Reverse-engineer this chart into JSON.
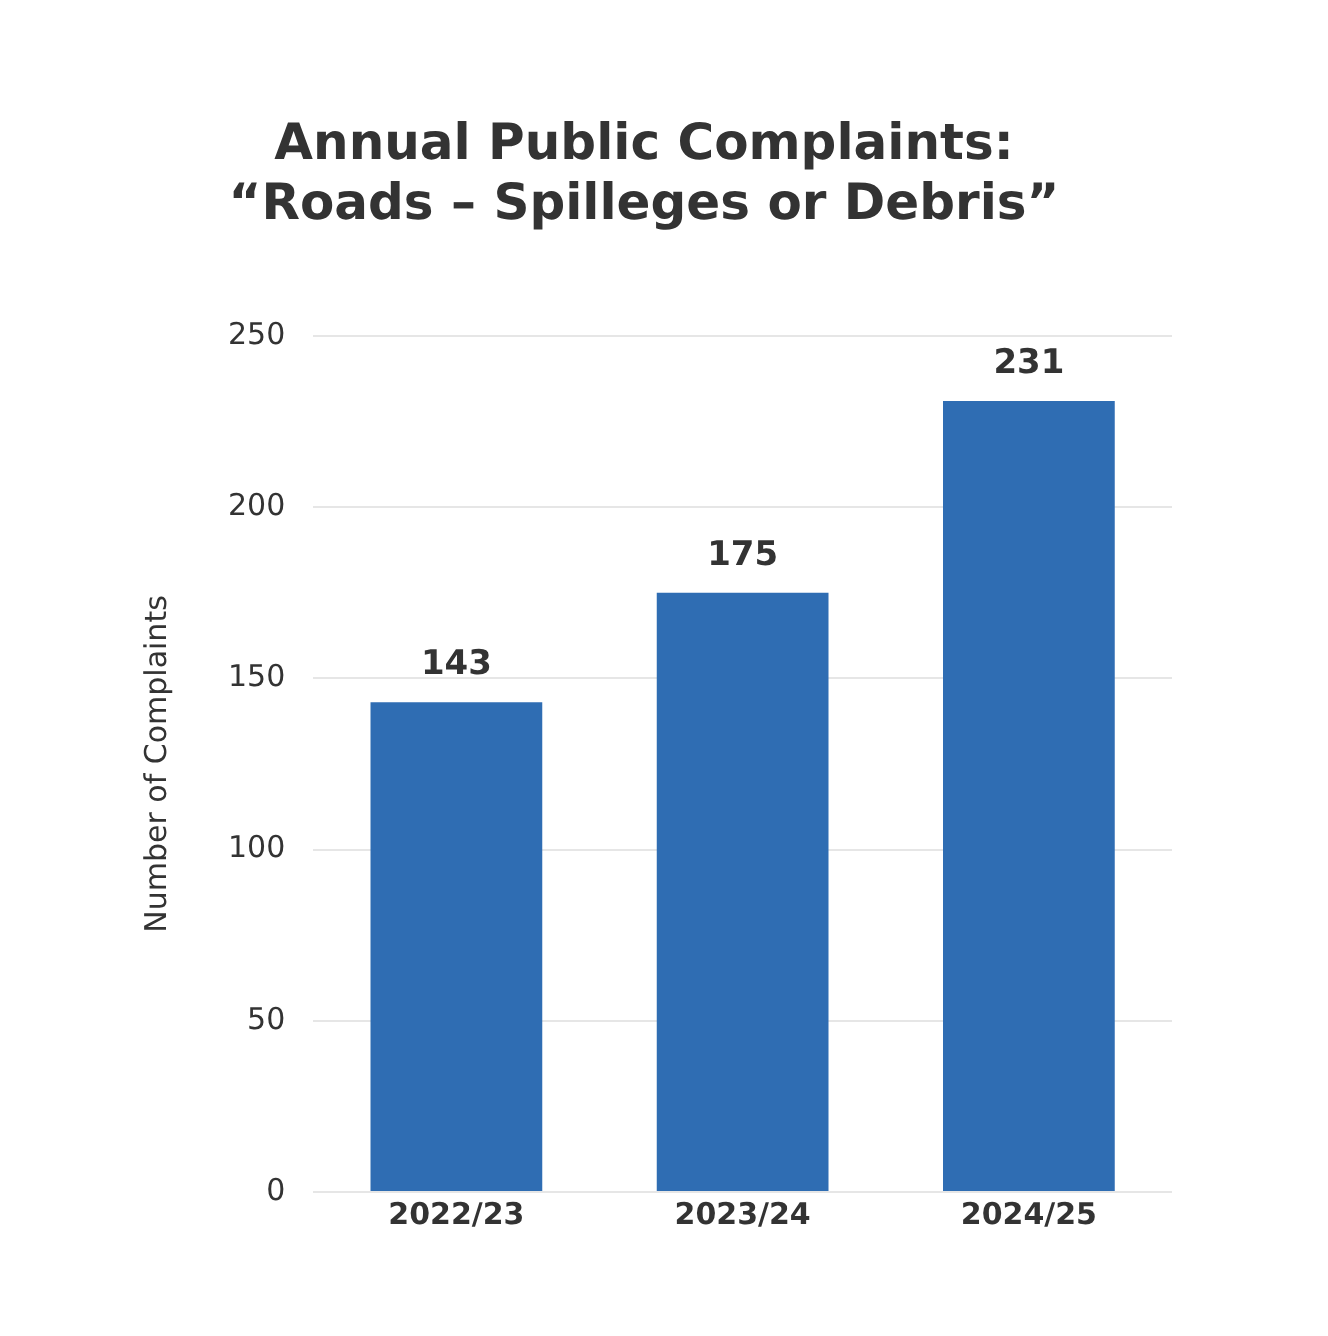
{
  "chart_data": {
    "type": "bar",
    "title": "Annual Public Complaints:\n“Roads – Spilleges or Debris”",
    "ylabel": "Number of Complaints",
    "categories": [
      "2022/23",
      "2023/24",
      "2024/25"
    ],
    "values": [
      143,
      175,
      231
    ],
    "color": "#2f6db3",
    "ylim": [
      0,
      250
    ],
    "yticks": [
      0,
      50,
      100,
      150,
      200,
      250
    ],
    "grid": "y",
    "data_labels": true,
    "legend": false
  }
}
